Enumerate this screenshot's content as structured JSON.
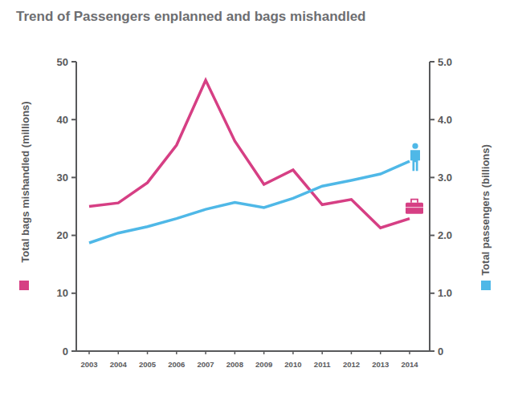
{
  "chart_data": {
    "type": "line",
    "title": "Trend of Passengers enplanned and bags mishandled",
    "categories": [
      "2003",
      "2004",
      "2005",
      "2006",
      "2007",
      "2008",
      "2009",
      "2010",
      "2011",
      "2012",
      "2013",
      "2014"
    ],
    "y_label": "Total bags mishandled (millions)",
    "y2_label": "Total passengers (billions)",
    "series": [
      {
        "color": "#d63f84",
        "values": [
          25.0,
          25.6,
          29.1,
          35.6,
          46.8,
          36.3,
          28.8,
          31.3,
          25.3,
          26.2,
          21.3,
          22.9
        ]
      },
      {
        "color": "#4fb8e7",
        "axis": "y2",
        "values": [
          1.87,
          2.04,
          2.15,
          2.29,
          2.45,
          2.57,
          2.48,
          2.64,
          2.85,
          2.95,
          3.06,
          3.28
        ]
      }
    ],
    "ylim": [
      0,
      50
    ],
    "yticks": [
      0,
      10,
      20,
      30,
      40,
      50
    ],
    "y2lim": [
      0,
      5
    ],
    "y2ticks": [
      0,
      {
        "value": 1,
        "label": "1.0"
      },
      {
        "value": 2,
        "label": "2.0"
      },
      {
        "value": 3,
        "label": "3.0"
      },
      {
        "value": 4,
        "label": "4.0"
      },
      {
        "value": 5,
        "label": "5.0"
      }
    ],
    "grid": false
  }
}
